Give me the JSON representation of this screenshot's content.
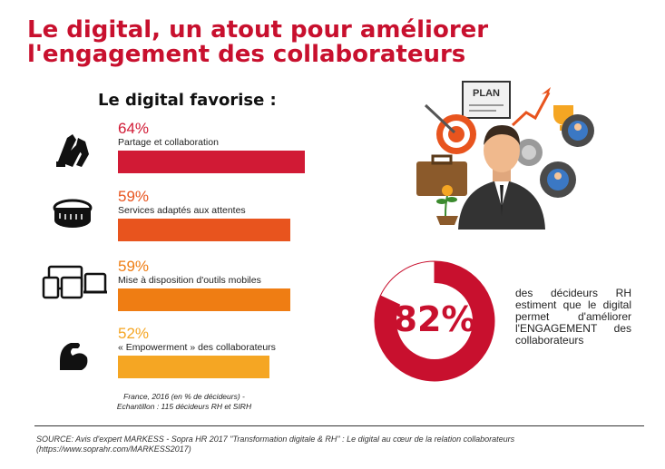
{
  "header": {
    "title": "Le digital, un atout pour améliorer l'engagement des collaborateurs",
    "subhead": "Le digital favorise :"
  },
  "chart_data": [
    {
      "type": "bar",
      "categories": [
        "Partage et collaboration",
        "Services adaptés aux attentes",
        "Mise à disposition d'outils mobiles",
        "« Empowerment » des collaborateurs"
      ],
      "values": [
        64,
        59,
        59,
        52
      ],
      "value_labels": [
        "64%",
        "59%",
        "59%",
        "52%"
      ],
      "colors": [
        "#d11a35",
        "#e8541e",
        "#ef7d13",
        "#f5a623"
      ],
      "icons": [
        "handshake-icon",
        "measuring-tape-icon",
        "devices-icon",
        "flexed-arm-icon"
      ]
    },
    {
      "type": "pie",
      "values": [
        82,
        18
      ],
      "center_label": "82%",
      "caption": "des décideurs RH estiment que le digital permet d'améliorer l'ENGAGEMENT des collaborateurs",
      "colors": [
        "#c8102e",
        "#ffffff"
      ]
    }
  ],
  "note": {
    "line1": "France, 2016 (en % de décideurs) -",
    "line2": "Echantillon : 115 décideurs RH et SIRH"
  },
  "illustration": {
    "plan_label": "PLAN",
    "icon": "businessman-strategy-icon"
  },
  "source": {
    "line1": "SOURCE: Avis d'expert MARKESS - Sopra HR 2017 \"Transformation digitale & RH\" : Le digital au cœur de la relation collaborateurs",
    "line2": "(https://www.soprahr.com/MARKESS2017)"
  }
}
